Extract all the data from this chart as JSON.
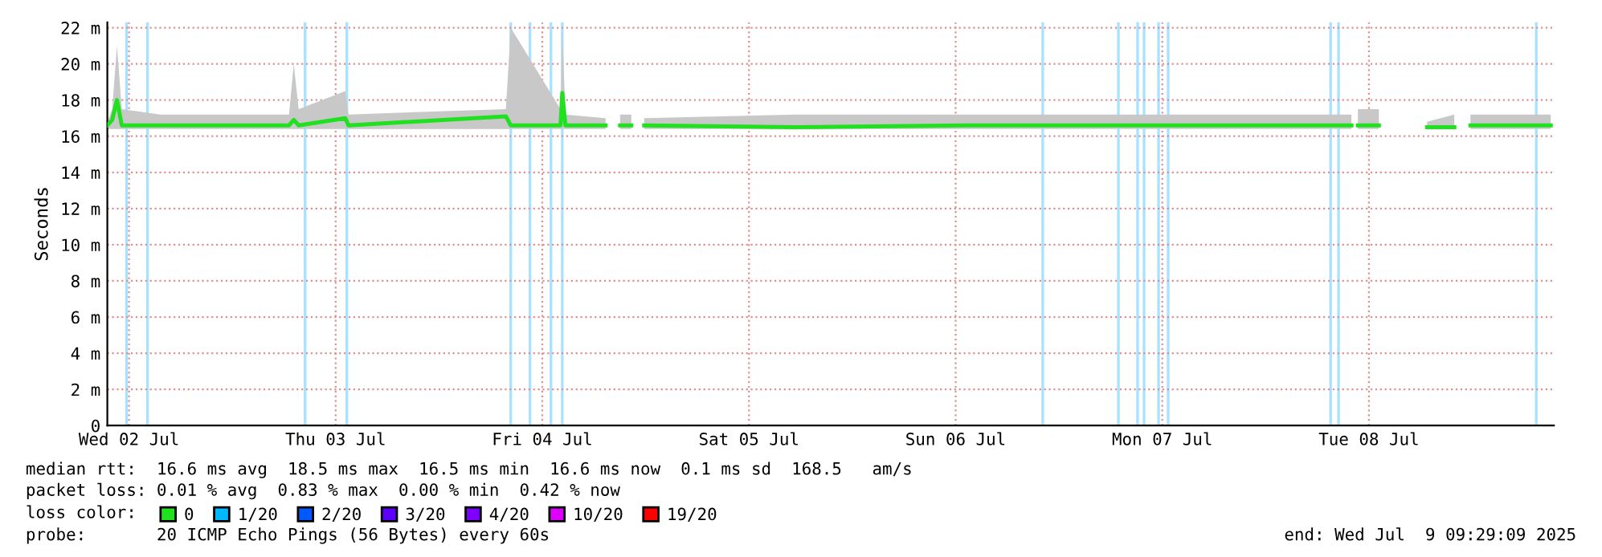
{
  "chart_data": {
    "type": "line",
    "ylabel": "Seconds",
    "x": [
      "2025-07-02T09:29",
      "2025-07-02T10:03",
      "2025-07-02T10:36",
      "2025-07-02T11:10",
      "2025-07-02T15:39",
      "2025-07-03T06:35",
      "2025-07-03T07:08",
      "2025-07-03T07:42",
      "2025-07-03T13:07",
      "2025-07-03T13:29",
      "2025-07-04T07:46",
      "2025-07-04T08:20",
      "2025-07-04T14:07",
      "2025-07-04T14:19",
      "2025-07-04T14:41",
      "2025-07-04T19:21",
      "2025-07-04T19:55",
      "2025-07-04T21:02",
      "2025-07-04T22:20",
      "2025-07-04T22:54",
      "2025-07-04T23:50",
      "2025-07-05T17:19",
      "2025-07-06T12:59",
      "2025-07-07T07:39",
      "2025-07-08T09:58",
      "2025-07-08T10:21",
      "2025-07-08T10:43",
      "2025-07-08T13:09",
      "2025-07-08T15:23",
      "2025-07-08T18:45",
      "2025-07-08T21:55",
      "2025-07-08T22:51",
      "2025-07-08T23:47",
      "2025-07-09T09:07"
    ],
    "series": [
      {
        "name": "0",
        "color": "#20e020",
        "values": [
          16.6,
          16.9,
          18,
          16.6,
          16.6,
          16.6,
          16.9,
          16.6,
          17,
          16.6,
          17.1,
          16.6,
          16.6,
          18.4,
          16.6,
          16.6,
          null,
          16.6,
          16.6,
          null,
          16.6,
          16.5,
          16.6,
          16.6,
          16.6,
          null,
          16.6,
          16.6,
          null,
          16.5,
          16.5,
          null,
          16.6,
          16.6
        ],
        "lower": [
          16.4,
          16.4,
          16.4,
          16.4,
          16.4,
          16.4,
          16.4,
          16.4,
          16.4,
          16.4,
          16.4,
          16.4,
          16.4,
          16.4,
          16.4,
          16.4,
          null,
          16.4,
          16.4,
          null,
          16.4,
          16.4,
          16.4,
          16.4,
          16.4,
          null,
          16.4,
          16.4,
          null,
          16.4,
          16.4,
          null,
          16.4,
          16.4
        ],
        "upper": [
          16.8,
          17.5,
          21,
          17.5,
          17.2,
          17.2,
          20,
          17.5,
          18.5,
          17.2,
          17.5,
          22,
          17.5,
          22,
          17.2,
          17,
          null,
          17.2,
          17.2,
          null,
          17,
          17.2,
          17.2,
          17.2,
          17.2,
          null,
          17.5,
          17.5,
          null,
          16.8,
          17.2,
          null,
          17.2,
          17.2
        ]
      },
      {
        "name": "1/20",
        "color": "#00b8ff",
        "values": [
          null,
          null,
          null,
          null,
          null,
          null,
          null,
          null,
          null,
          null,
          null,
          null,
          null,
          null,
          null,
          null,
          null,
          null,
          null,
          null,
          null,
          null,
          null,
          null,
          null,
          null,
          null,
          null,
          null,
          null,
          null,
          null,
          null,
          null
        ]
      },
      {
        "name": "2/20",
        "color": "#0059ff",
        "values": [
          null,
          null,
          null,
          null,
          null,
          null,
          null,
          null,
          null,
          null,
          null,
          null,
          null,
          null,
          null,
          null,
          null,
          null,
          null,
          null,
          null,
          null,
          null,
          null,
          null,
          null,
          null,
          null,
          null,
          null,
          null,
          null,
          null,
          null
        ]
      },
      {
        "name": "3/20",
        "color": "#5e00ff",
        "values": [
          null,
          null,
          null,
          null,
          null,
          null,
          null,
          null,
          null,
          null,
          null,
          null,
          null,
          null,
          null,
          null,
          null,
          null,
          null,
          null,
          null,
          null,
          null,
          null,
          null,
          null,
          null,
          null,
          null,
          null,
          null,
          null,
          null,
          null
        ]
      },
      {
        "name": "4/20",
        "color": "#7e00ff",
        "values": [
          null,
          null,
          null,
          null,
          null,
          null,
          null,
          null,
          null,
          null,
          null,
          null,
          null,
          null,
          null,
          null,
          null,
          null,
          null,
          null,
          null,
          null,
          null,
          null,
          null,
          null,
          null,
          null,
          null,
          null,
          null,
          null,
          null,
          null
        ]
      },
      {
        "name": "10/20",
        "color": "#dd00ff",
        "values": [
          null,
          null,
          null,
          null,
          null,
          null,
          null,
          null,
          null,
          null,
          null,
          null,
          null,
          null,
          null,
          null,
          null,
          null,
          null,
          null,
          null,
          null,
          null,
          null,
          null,
          null,
          null,
          null,
          null,
          null,
          null,
          null,
          null,
          null
        ]
      },
      {
        "name": "19/20",
        "color": "#ff0000",
        "values": [
          null,
          null,
          null,
          null,
          null,
          null,
          null,
          null,
          null,
          null,
          null,
          null,
          null,
          null,
          null,
          null,
          null,
          null,
          null,
          null,
          null,
          null,
          null,
          null,
          null,
          null,
          null,
          null,
          null,
          null,
          null,
          null,
          null,
          null
        ]
      }
    ],
    "ref_lines": [
      {
        "axis": "x",
        "value": "2025-07-02T11:43",
        "color": "#a8e2ff"
      },
      {
        "axis": "x",
        "value": "2025-07-02T14:09",
        "color": "#a8e2ff"
      },
      {
        "axis": "x",
        "value": "2025-07-03T08:27",
        "color": "#a8e2ff"
      },
      {
        "axis": "x",
        "value": "2025-07-03T13:18",
        "color": "#a8e2ff"
      },
      {
        "axis": "x",
        "value": "2025-07-04T08:20",
        "color": "#a8e2ff"
      },
      {
        "axis": "x",
        "value": "2025-07-04T10:34",
        "color": "#a8e2ff"
      },
      {
        "axis": "x",
        "value": "2025-07-04T13:00",
        "color": "#a8e2ff"
      },
      {
        "axis": "x",
        "value": "2025-07-04T14:19",
        "color": "#a8e2ff"
      },
      {
        "axis": "x",
        "value": "2025-07-06T22:07",
        "color": "#a8e2ff"
      },
      {
        "axis": "x",
        "value": "2025-07-07T06:54",
        "color": "#a8e2ff"
      },
      {
        "axis": "x",
        "value": "2025-07-07T09:08",
        "color": "#a8e2ff"
      },
      {
        "axis": "x",
        "value": "2025-07-07T09:53",
        "color": "#a8e2ff"
      },
      {
        "axis": "x",
        "value": "2025-07-07T11:34",
        "color": "#a8e2ff"
      },
      {
        "axis": "x",
        "value": "2025-07-07T12:41",
        "color": "#a8e2ff"
      },
      {
        "axis": "x",
        "value": "2025-07-08T07:33",
        "color": "#a8e2ff"
      },
      {
        "axis": "x",
        "value": "2025-07-08T08:28",
        "color": "#a8e2ff"
      },
      {
        "axis": "x",
        "value": "2025-07-09T07:26",
        "color": "#a8e2ff"
      }
    ],
    "xlim": [
      "2025-07-02T09:29",
      "2025-07-09T09:29"
    ],
    "xticks": [
      {
        "value": "2025-07-02T12:00",
        "label": "Wed 02 Jul"
      },
      {
        "value": "2025-07-03T12:00",
        "label": "Thu 03 Jul"
      },
      {
        "value": "2025-07-04T12:00",
        "label": "Fri 04 Jul"
      },
      {
        "value": "2025-07-05T12:00",
        "label": "Sat 05 Jul"
      },
      {
        "value": "2025-07-06T12:00",
        "label": "Sun 06 Jul"
      },
      {
        "value": "2025-07-07T12:00",
        "label": "Mon 07 Jul"
      },
      {
        "value": "2025-07-08T12:00",
        "label": "Tue 08 Jul"
      }
    ],
    "ylim": [
      0,
      22.3
    ],
    "yticks": [
      0,
      {
        "value": 2,
        "label": "2 m"
      },
      {
        "value": 4,
        "label": "4 m"
      },
      {
        "value": 6,
        "label": "6 m"
      },
      {
        "value": 8,
        "label": "8 m"
      },
      {
        "value": 10,
        "label": "10 m"
      },
      {
        "value": 12,
        "label": "12 m"
      },
      {
        "value": 14,
        "label": "14 m"
      },
      {
        "value": 16,
        "label": "16 m"
      },
      {
        "value": 18,
        "label": "18 m"
      },
      {
        "value": 20,
        "label": "20 m"
      },
      {
        "value": 22,
        "label": "22 m"
      }
    ],
    "grid": true,
    "legend": "bottom",
    "legend_title": "loss color:",
    "marker": "none",
    "line_style": "solid",
    "annotations": [
      "median rtt:  16.6 ms avg  18.5 ms max  16.5 ms min  16.6 ms now  0.1 ms sd  168.5   am/s",
      "packet loss: 0.01 % avg  0.83 % max  0.00 % min  0.42 % now",
      "probe:       20 ICMP Echo Pings (56 Bytes) every 60s",
      "end: Wed Jul  9 09:29:09 2025"
    ]
  }
}
